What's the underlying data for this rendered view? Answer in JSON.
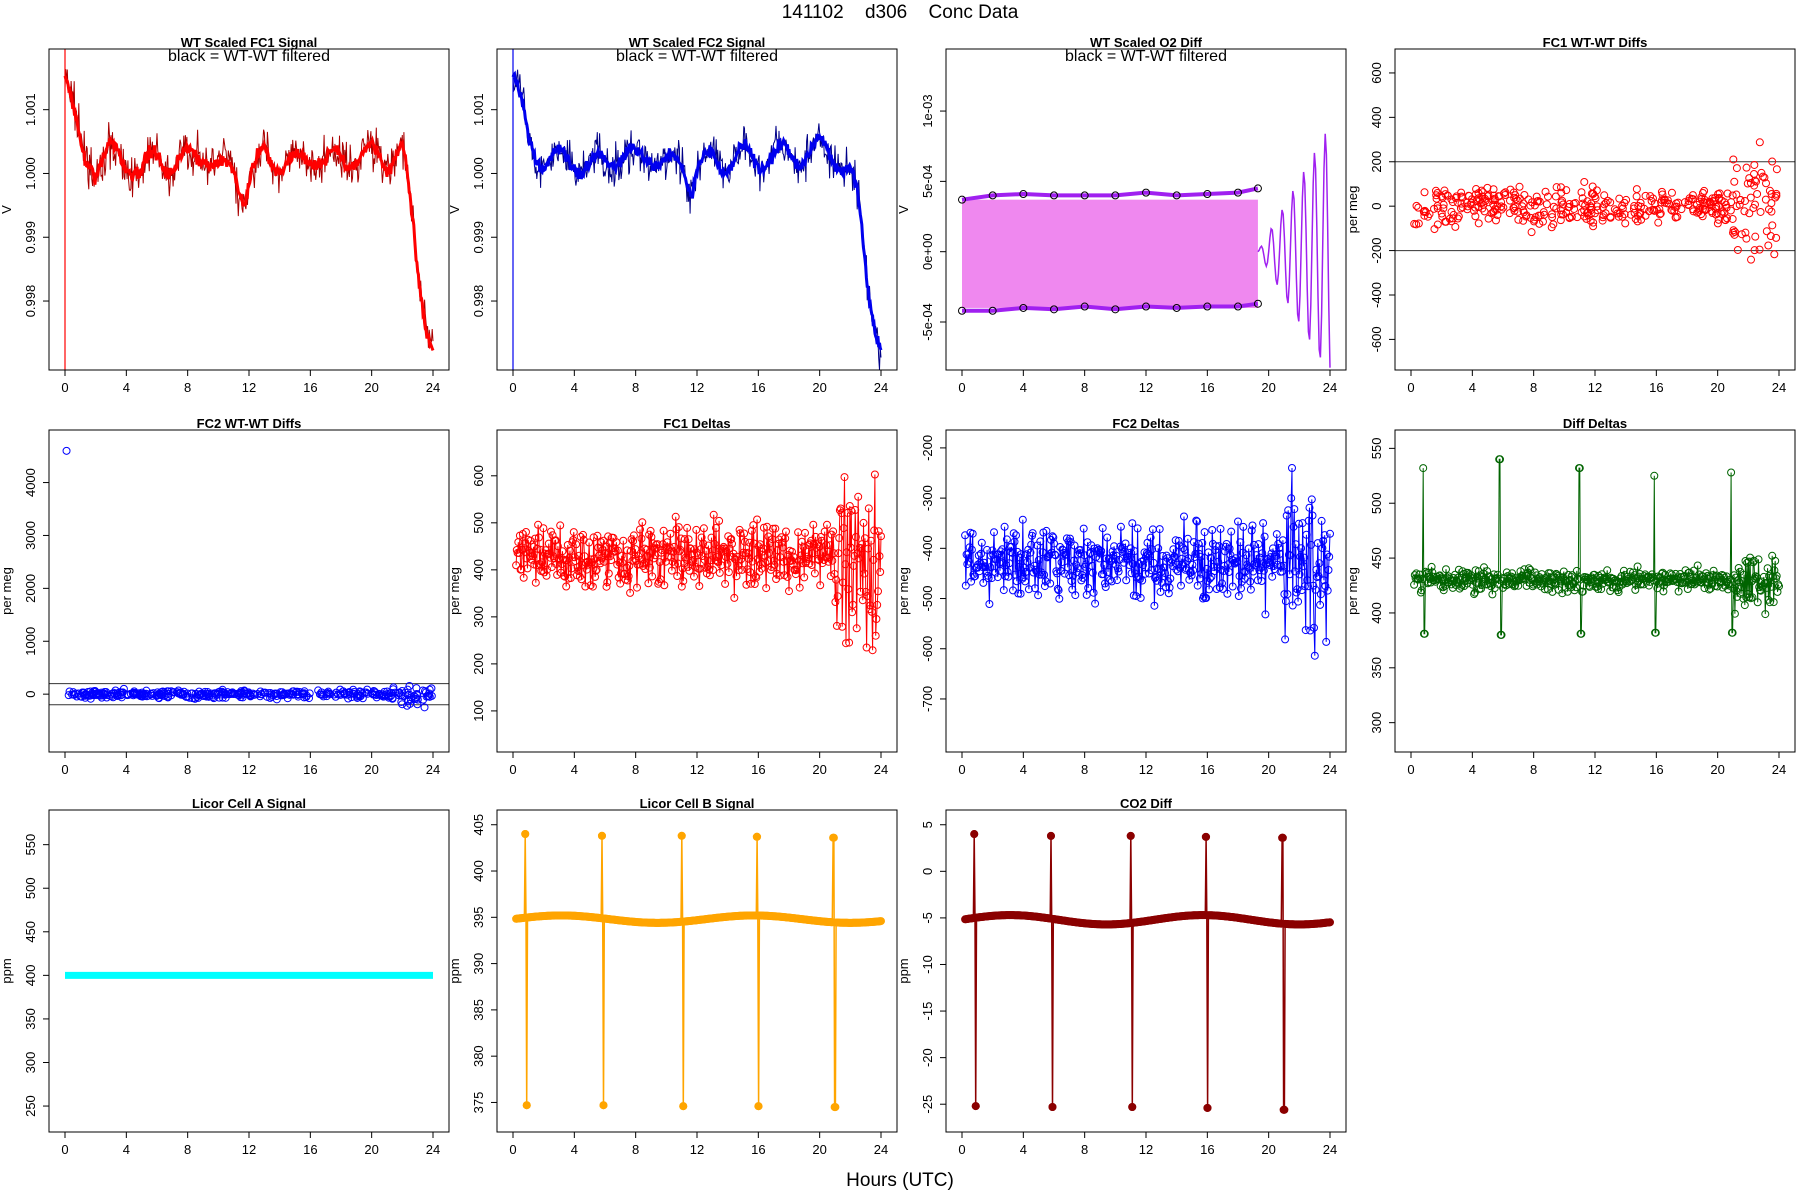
{
  "header": {
    "code": "141102",
    "station": "d306",
    "label": "Conc Data"
  },
  "footer": {
    "xlabel": "Hours (UTC)"
  },
  "chart_data": [
    {
      "id": "p1",
      "type": "line",
      "title": "WT Scaled FC1 Signal",
      "subtitle": "black = WT-WT filtered",
      "ylabel": "V",
      "xlim": [
        0,
        24
      ],
      "ylim": [
        0.99712,
        1.00175
      ],
      "yticks": [
        0.998,
        0.999,
        1.0,
        1.001
      ],
      "ytick_labels": [
        "0.998",
        "0.999",
        "1.000",
        "1.001"
      ],
      "xticks": [
        0,
        4,
        8,
        12,
        16,
        20,
        24
      ],
      "color": "#ff0000",
      "trace_color": "#aa0000",
      "points": [
        [
          0,
          1.0015
        ],
        [
          1,
          1.0004
        ],
        [
          2,
          1.0001
        ],
        [
          3,
          1.0003
        ],
        [
          4,
          1.0002
        ],
        [
          5,
          1.0
        ],
        [
          6,
          1.0003
        ],
        [
          7,
          1.0001
        ],
        [
          8,
          1.0002
        ],
        [
          9,
          1.0004
        ],
        [
          10,
          1.0
        ],
        [
          11,
          1.0001
        ],
        [
          11.7,
          0.9996
        ],
        [
          12,
          0.9999
        ],
        [
          13,
          1.0003
        ],
        [
          14,
          1.0002
        ],
        [
          15,
          1.0001
        ],
        [
          16,
          1.0003
        ],
        [
          17,
          1.0002
        ],
        [
          18,
          1.0002
        ],
        [
          19,
          1.0003
        ],
        [
          20,
          1.0003
        ],
        [
          21,
          1.0002
        ],
        [
          22,
          1.0004
        ],
        [
          22.5,
          0.9995
        ],
        [
          23,
          0.9985
        ],
        [
          23.5,
          0.9978
        ],
        [
          24,
          0.9973
        ]
      ]
    },
    {
      "id": "p2",
      "type": "line",
      "title": "WT Scaled FC2 Signal",
      "subtitle": "black = WT-WT filtered",
      "ylabel": "V",
      "xlim": [
        0,
        24
      ],
      "ylim": [
        0.99712,
        1.00175
      ],
      "yticks": [
        0.998,
        0.999,
        1.0,
        1.001
      ],
      "ytick_labels": [
        "0.998",
        "0.999",
        "1.000",
        "1.001"
      ],
      "xticks": [
        0,
        4,
        8,
        12,
        16,
        20,
        24
      ],
      "color": "#0000ee",
      "trace_color": "#000088",
      "points": [
        [
          0,
          1.0016
        ],
        [
          1,
          1.0005
        ],
        [
          2,
          1.0002
        ],
        [
          3,
          1.0002
        ],
        [
          4,
          1.0002
        ],
        [
          5,
          1.0001
        ],
        [
          6,
          1.0002
        ],
        [
          7,
          1.0003
        ],
        [
          8,
          1.0002
        ],
        [
          9,
          1.0003
        ],
        [
          10,
          1.0001
        ],
        [
          11,
          1.0002
        ],
        [
          11.7,
          0.9998
        ],
        [
          12,
          1.0001
        ],
        [
          13,
          1.0002
        ],
        [
          14,
          1.0002
        ],
        [
          15,
          1.0003
        ],
        [
          16,
          1.0002
        ],
        [
          17,
          1.0003
        ],
        [
          18,
          1.0003
        ],
        [
          19,
          1.0003
        ],
        [
          20,
          1.0004
        ],
        [
          21,
          1.0003
        ],
        [
          22,
          1.0
        ],
        [
          22.5,
          0.9995
        ],
        [
          23,
          0.9985
        ],
        [
          23.5,
          0.9978
        ],
        [
          24,
          0.9973
        ]
      ]
    },
    {
      "id": "p3",
      "type": "band",
      "title": "WT Scaled O2 Diff",
      "subtitle": "black = WT-WT filtered",
      "ylabel": "V",
      "xlim": [
        0,
        24
      ],
      "ylim": [
        -0.00075,
        0.00135
      ],
      "yticks": [
        -0.0005,
        0,
        0.0005,
        0.001
      ],
      "ytick_labels": [
        "-5e-04",
        "0e+00",
        "5e-04",
        "1e-03"
      ],
      "xticks": [
        0,
        4,
        8,
        12,
        16,
        20,
        24
      ],
      "color": "#ee82ee",
      "trace_color": "#a020f0",
      "band": [
        [
          0,
          -0.0004,
          0.00037
        ],
        [
          19.3,
          -0.0004,
          0.00037
        ]
      ],
      "upper": [
        [
          0,
          0.00037
        ],
        [
          2,
          0.0004
        ],
        [
          4,
          0.00041
        ],
        [
          6,
          0.0004
        ],
        [
          8,
          0.0004
        ],
        [
          10,
          0.0004
        ],
        [
          12,
          0.00042
        ],
        [
          14,
          0.0004
        ],
        [
          16,
          0.00041
        ],
        [
          18,
          0.00042
        ],
        [
          19.3,
          0.00045
        ]
      ],
      "lower": [
        [
          0,
          -0.00042
        ],
        [
          2,
          -0.00042
        ],
        [
          4,
          -0.0004
        ],
        [
          6,
          -0.00041
        ],
        [
          8,
          -0.00039
        ],
        [
          10,
          -0.00041
        ],
        [
          12,
          -0.00039
        ],
        [
          14,
          -0.0004
        ],
        [
          16,
          -0.00039
        ],
        [
          18,
          -0.00039
        ],
        [
          19.3,
          -0.00037
        ]
      ]
    },
    {
      "id": "p4",
      "type": "scatter",
      "title": "FC1 WT-WT Diffs",
      "ylabel": "per meg",
      "xlim": [
        0,
        24
      ],
      "ylim": [
        -680,
        650
      ],
      "yticks": [
        -600,
        -400,
        -200,
        0,
        200,
        400,
        600
      ],
      "ytick_labels": [
        "-600",
        "-400",
        "-200",
        "0",
        "200",
        "400",
        "600"
      ],
      "xticks": [
        0,
        4,
        8,
        12,
        16,
        20,
        24
      ],
      "color": "#ff0000",
      "hlines": [
        -200,
        200
      ],
      "spread": {
        "start": 0.2,
        "end": 24,
        "sd": 70
      }
    },
    {
      "id": "p5",
      "type": "scatter",
      "title": "FC2 WT-WT Diffs",
      "ylabel": "per meg",
      "xlim": [
        0,
        24
      ],
      "ylim": [
        -850,
        4750
      ],
      "yticks": [
        0,
        1000,
        2000,
        3000,
        4000
      ],
      "ytick_labels": [
        "0",
        "1000",
        "2000",
        "3000",
        "4000"
      ],
      "xticks": [
        0,
        4,
        8,
        12,
        16,
        20,
        24
      ],
      "color": "#0000ff",
      "hlines": [
        -200,
        200
      ],
      "outlier": [
        0.1,
        4600
      ],
      "spread": {
        "start": 0.2,
        "end": 24,
        "sd": 60
      }
    },
    {
      "id": "p6",
      "type": "line",
      "title": "FC1 Deltas",
      "ylabel": "per meg",
      "xlim": [
        0,
        24
      ],
      "ylim": [
        40,
        670
      ],
      "yticks": [
        100,
        200,
        300,
        400,
        500,
        600
      ],
      "ytick_labels": [
        "100",
        "200",
        "300",
        "400",
        "500",
        "600"
      ],
      "xticks": [
        0,
        4,
        8,
        12,
        16,
        20,
        24
      ],
      "color": "#ff0000",
      "base": 430,
      "noise": 35
    },
    {
      "id": "p7",
      "type": "line",
      "title": "FC2 Deltas",
      "ylabel": "per meg",
      "xlim": [
        0,
        24
      ],
      "ylim": [
        -780,
        -190
      ],
      "yticks": [
        -700,
        -600,
        -500,
        -400,
        -300,
        -200
      ],
      "ytick_labels": [
        "-700",
        "-600",
        "-500",
        "-400",
        "-300",
        "-200"
      ],
      "xticks": [
        0,
        4,
        8,
        12,
        16,
        20,
        24
      ],
      "color": "#0000ff",
      "base": -430,
      "noise": 35
    },
    {
      "id": "p8",
      "type": "line",
      "title": "Diff Deltas",
      "ylabel": "per meg",
      "xlim": [
        0,
        24
      ],
      "ylim": [
        285,
        555
      ],
      "yticks": [
        300,
        350,
        400,
        450,
        500,
        550
      ],
      "ytick_labels": [
        "300",
        "350",
        "400",
        "450",
        "500",
        "550"
      ],
      "xticks": [
        0,
        4,
        8,
        12,
        16,
        20,
        24
      ],
      "color": "#006400",
      "base": 430,
      "noise": 5,
      "spikes": [
        [
          0.8,
          532,
          381
        ],
        [
          5.8,
          540,
          380
        ],
        [
          11.0,
          532,
          381
        ],
        [
          15.9,
          525,
          382
        ],
        [
          20.9,
          528,
          382
        ]
      ]
    },
    {
      "id": "p9",
      "type": "line",
      "title": "Licor Cell A Signal",
      "ylabel": "ppm",
      "xlim": [
        0,
        24
      ],
      "ylim": [
        235,
        575
      ],
      "yticks": [
        250,
        300,
        350,
        400,
        450,
        500,
        550
      ],
      "ytick_labels": [
        "250",
        "300",
        "350",
        "400",
        "450",
        "500",
        "550"
      ],
      "xticks": [
        0,
        4,
        8,
        12,
        16,
        20,
        24
      ],
      "color": "#00ffff",
      "value": 400
    },
    {
      "id": "p10",
      "type": "line",
      "title": "Licor Cell B Signal",
      "ylabel": "ppm",
      "xlim": [
        0,
        24
      ],
      "ylim": [
        373.2,
        405.2
      ],
      "yticks": [
        375,
        380,
        385,
        390,
        395,
        400,
        405
      ],
      "ytick_labels": [
        "375",
        "380",
        "385",
        "390",
        "395",
        "400",
        "405"
      ],
      "xticks": [
        0,
        4,
        8,
        12,
        16,
        20,
        24
      ],
      "color": "#ffa500",
      "base": 394.8,
      "spikes": [
        [
          0.8,
          404,
          374.7
        ],
        [
          5.8,
          403.8,
          374.7
        ],
        [
          11.0,
          403.8,
          374.6
        ],
        [
          15.9,
          403.7,
          374.6
        ],
        [
          20.9,
          403.6,
          374.5
        ]
      ]
    },
    {
      "id": "p11",
      "type": "line",
      "title": "CO2 Diff",
      "ylabel": "ppm",
      "xlim": [
        0,
        24
      ],
      "ylim": [
        -26.6,
        5.2
      ],
      "yticks": [
        -25,
        -20,
        -15,
        -10,
        -5,
        0,
        5
      ],
      "ytick_labels": [
        "-25",
        "-20",
        "-15",
        "-10",
        "-5",
        "0",
        "5"
      ],
      "xticks": [
        0,
        4,
        8,
        12,
        16,
        20,
        24
      ],
      "color": "#8b0000",
      "base": -5.2,
      "spikes": [
        [
          0.8,
          4,
          -25.2
        ],
        [
          5.8,
          3.8,
          -25.3
        ],
        [
          11.0,
          3.8,
          -25.3
        ],
        [
          15.9,
          3.7,
          -25.4
        ],
        [
          20.9,
          3.6,
          -25.6
        ]
      ]
    }
  ]
}
